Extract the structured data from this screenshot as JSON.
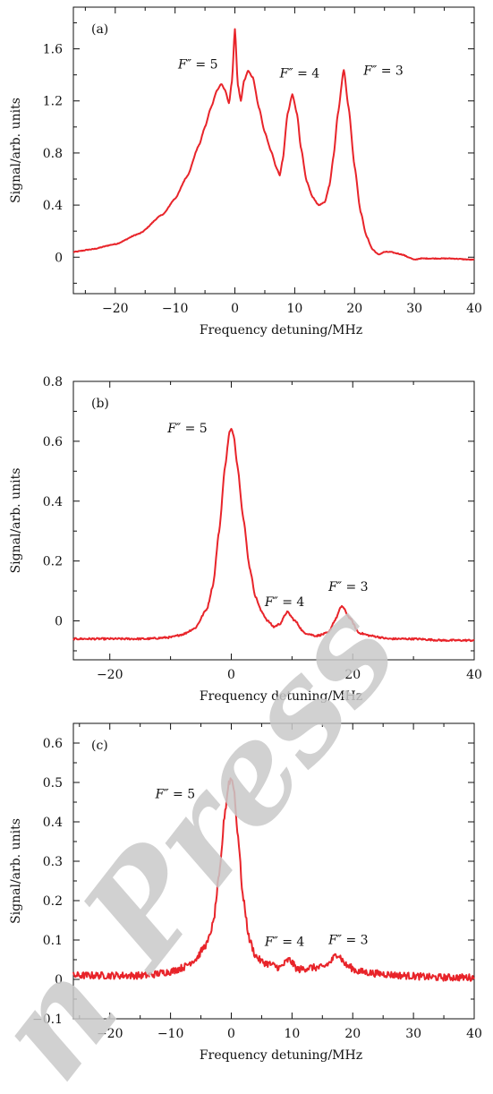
{
  "watermark": "n Press",
  "chart_data": [
    {
      "type": "line",
      "panel_label": "(a)",
      "xlabel": "Frequency detuning/MHz",
      "ylabel": "Signal/arb. units",
      "xlim": [
        -27,
        40
      ],
      "ylim": [
        -0.28,
        1.92
      ],
      "xticks": [
        -20,
        -10,
        0,
        10,
        20,
        30,
        40
      ],
      "xtick_labels": [
        "−20",
        "−10",
        "0",
        "10",
        "20",
        "30",
        "40"
      ],
      "yticks": [
        0,
        0.4,
        0.8,
        1.2,
        1.6
      ],
      "ytick_labels": [
        "0",
        "0.4",
        "0.8",
        "1.2",
        "1.6"
      ],
      "color": "#e8242a",
      "noise": 0.003,
      "series": [
        {
          "x": [
            -27,
            -24,
            -20,
            -16,
            -12,
            -10,
            -8,
            -6,
            -5,
            -4,
            -3,
            -2.3,
            -1.6,
            -1,
            -0.5,
            0,
            0.5,
            1,
            1.5,
            2.2,
            3,
            4,
            5,
            6,
            7,
            7.5,
            8,
            8.8,
            9.6,
            10.4,
            11,
            12,
            13,
            14,
            15,
            15.8,
            16.5,
            17.2,
            18.2,
            19,
            20,
            21,
            22,
            23,
            24,
            25,
            26,
            27,
            28,
            29,
            30,
            31,
            33,
            36,
            40
          ],
          "y": [
            0.04,
            0.06,
            0.1,
            0.18,
            0.33,
            0.45,
            0.62,
            0.86,
            1.0,
            1.15,
            1.28,
            1.33,
            1.28,
            1.18,
            1.35,
            1.75,
            1.32,
            1.2,
            1.35,
            1.43,
            1.38,
            1.15,
            0.96,
            0.82,
            0.68,
            0.63,
            0.75,
            1.1,
            1.25,
            1.1,
            0.85,
            0.58,
            0.46,
            0.4,
            0.42,
            0.55,
            0.78,
            1.1,
            1.44,
            1.15,
            0.7,
            0.35,
            0.16,
            0.06,
            0.02,
            0.04,
            0.04,
            0.03,
            0.02,
            0.0,
            -0.02,
            -0.01,
            -0.01,
            -0.01,
            -0.02
          ]
        }
      ],
      "annotations": [
        {
          "text": "= 5",
          "label": "F″",
          "x": -9.5,
          "y": 1.45
        },
        {
          "text": "= 4",
          "label": "F″",
          "x": 7.5,
          "y": 1.38
        },
        {
          "text": "= 3",
          "label": "F″",
          "x": 21.5,
          "y": 1.4
        }
      ]
    },
    {
      "type": "line",
      "panel_label": "(b)",
      "xlabel": "Frequency detuning/MHz",
      "ylabel": "Signal/arb. units",
      "xlim": [
        -26,
        40
      ],
      "ylim": [
        -0.13,
        0.8
      ],
      "xticks": [
        -20,
        0,
        20,
        40
      ],
      "xtick_labels": [
        "−20",
        "0",
        "20",
        "40"
      ],
      "yticks": [
        0,
        0.2,
        0.4,
        0.6,
        0.8
      ],
      "ytick_labels": [
        "0",
        "0.2",
        "0.4",
        "0.6",
        "0.8"
      ],
      "color": "#e8242a",
      "noise": 0.003,
      "series": [
        {
          "x": [
            -26,
            -20,
            -14,
            -10,
            -8,
            -6,
            -4,
            -3,
            -2,
            -1,
            -0.3,
            0,
            0.4,
            1,
            2,
            3,
            4,
            5,
            6,
            7,
            8,
            9.2,
            10.5,
            12,
            14,
            16,
            17,
            18.2,
            19.5,
            21,
            23,
            26,
            30,
            35,
            40
          ],
          "y": [
            -0.06,
            -0.06,
            -0.06,
            -0.055,
            -0.045,
            -0.025,
            0.04,
            0.12,
            0.3,
            0.52,
            0.63,
            0.64,
            0.62,
            0.52,
            0.34,
            0.18,
            0.08,
            0.03,
            0.0,
            -0.02,
            -0.01,
            0.03,
            0.0,
            -0.04,
            -0.05,
            -0.04,
            0.0,
            0.05,
            0.01,
            -0.04,
            -0.05,
            -0.06,
            -0.06,
            -0.065,
            -0.065
          ]
        }
      ],
      "annotations": [
        {
          "text": "= 5",
          "label": "F″",
          "x": -10.5,
          "y": 0.63
        },
        {
          "text": "= 4",
          "label": "F″",
          "x": 5.5,
          "y": 0.05
        },
        {
          "text": "= 3",
          "label": "F″",
          "x": 16,
          "y": 0.1
        }
      ]
    },
    {
      "type": "line",
      "panel_label": "(c)",
      "xlabel": "Frequency detuning/MHz",
      "ylabel": "Signal/arb. units",
      "xlim": [
        -26,
        40
      ],
      "ylim": [
        -0.1,
        0.65
      ],
      "xticks": [
        -20,
        -10,
        0,
        10,
        20,
        30,
        40
      ],
      "xtick_labels": [
        "−20",
        "−10",
        "0",
        "10",
        "20",
        "30",
        "40"
      ],
      "yticks": [
        -0.1,
        0,
        0.1,
        0.2,
        0.3,
        0.4,
        0.5,
        0.6
      ],
      "ytick_labels": [
        "−0.1",
        "0",
        "0.1",
        "0.2",
        "0.3",
        "0.4",
        "0.5",
        "0.6"
      ],
      "color": "#e8242a",
      "noise": 0.009,
      "series": [
        {
          "x": [
            -26,
            -20,
            -14,
            -10,
            -8,
            -6,
            -4,
            -3,
            -2,
            -1,
            -0.4,
            0,
            0.4,
            1,
            2,
            3,
            4,
            5,
            6,
            8,
            9.5,
            11,
            13,
            15,
            16,
            17.5,
            19,
            21,
            24,
            28,
            34,
            40
          ],
          "y": [
            0.01,
            0.01,
            0.01,
            0.02,
            0.03,
            0.05,
            0.09,
            0.14,
            0.26,
            0.43,
            0.5,
            0.51,
            0.49,
            0.38,
            0.2,
            0.1,
            0.06,
            0.045,
            0.04,
            0.03,
            0.05,
            0.025,
            0.03,
            0.03,
            0.04,
            0.065,
            0.035,
            0.02,
            0.015,
            0.01,
            0.005,
            0.005
          ]
        }
      ],
      "annotations": [
        {
          "text": "= 5",
          "label": "F″",
          "x": -12.5,
          "y": 0.46
        },
        {
          "text": "= 4",
          "label": "F″",
          "x": 5.5,
          "y": 0.085
        },
        {
          "text": "= 3",
          "label": "F″",
          "x": 16,
          "y": 0.09
        }
      ]
    }
  ]
}
